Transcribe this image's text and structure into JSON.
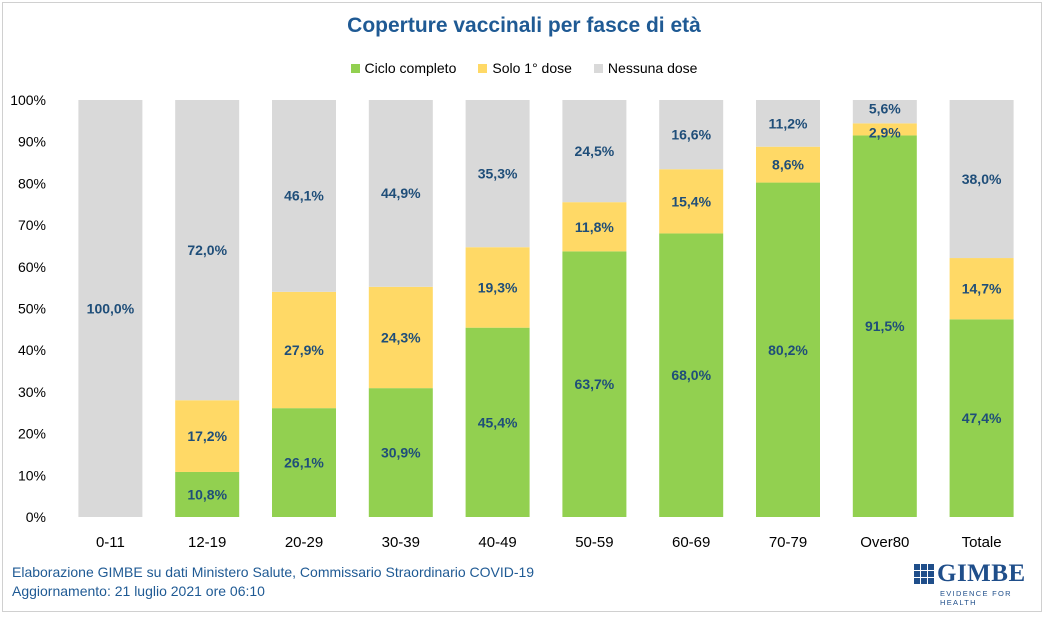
{
  "chart_data": {
    "type": "bar",
    "stacked": true,
    "title": "Coperture vaccinali per fasce di età",
    "categories": [
      "0-11",
      "12-19",
      "20-29",
      "30-39",
      "40-49",
      "50-59",
      "60-69",
      "70-79",
      "Over80",
      "Totale"
    ],
    "series": [
      {
        "name": "Ciclo completo",
        "color": "#92d050",
        "values": [
          0,
          10.8,
          26.1,
          30.9,
          45.4,
          63.7,
          68.0,
          80.2,
          91.5,
          47.4
        ],
        "labels": [
          "",
          "10,8%",
          "26,1%",
          "30,9%",
          "45,4%",
          "63,7%",
          "68,0%",
          "80,2%",
          "91,5%",
          "47,4%"
        ]
      },
      {
        "name": "Solo 1° dose",
        "color": "#ffd966",
        "values": [
          0,
          17.2,
          27.9,
          24.3,
          19.3,
          11.8,
          15.4,
          8.6,
          2.9,
          14.7
        ],
        "labels": [
          "",
          "17,2%",
          "27,9%",
          "24,3%",
          "19,3%",
          "11,8%",
          "15,4%",
          "8,6%",
          "2,9%",
          "14,7%"
        ]
      },
      {
        "name": "Nessuna dose",
        "color": "#d9d9d9",
        "values": [
          100.0,
          72.0,
          46.1,
          44.9,
          35.3,
          24.5,
          16.6,
          11.2,
          5.6,
          38.0
        ],
        "labels": [
          "100,0%",
          "72,0%",
          "46,1%",
          "44,9%",
          "35,3%",
          "24,5%",
          "16,6%",
          "11,2%",
          "5,6%",
          "38,0%"
        ]
      }
    ],
    "ylim": [
      0,
      100
    ],
    "yticks": [
      "0%",
      "10%",
      "20%",
      "30%",
      "40%",
      "50%",
      "60%",
      "70%",
      "80%",
      "90%",
      "100%"
    ],
    "label_color": "#1f4e79",
    "legend_position": "top"
  },
  "footer": {
    "line1": "Elaborazione GIMBE su dati Ministero Salute, Commissario Straordinario COVID-19",
    "line2": "Aggiornamento: 21 luglio 2021 ore 06:10"
  },
  "logo": {
    "name": "GIMBE",
    "tagline": "EVIDENCE FOR HEALTH"
  }
}
